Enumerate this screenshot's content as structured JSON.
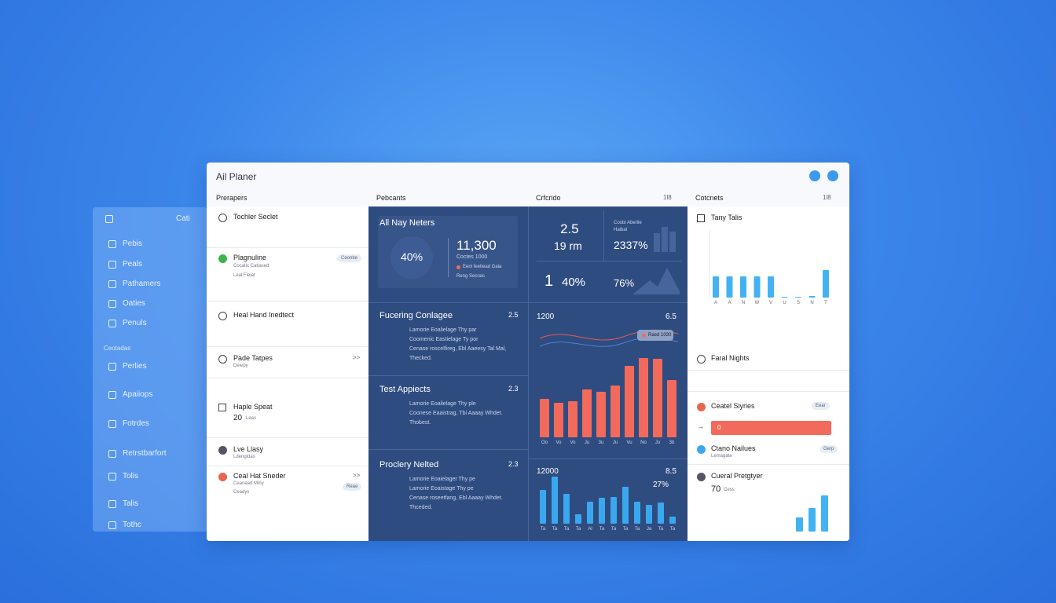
{
  "window": {
    "title": "Ail Planer"
  },
  "sidebar": {
    "header": "Cati",
    "items": [
      "Pebis",
      "Peals",
      "Pathamers",
      "Oaties",
      "Penuls"
    ],
    "section": "Ceotadas",
    "section_items": [
      "Perlies",
      "Apaiiops",
      "Fotrdes",
      "Retrstbarfort",
      "Tolis",
      "Talis",
      "Tothc"
    ]
  },
  "columns": [
    {
      "header": "Prerapers"
    },
    {
      "header": "Pebcants"
    },
    {
      "header": "Crfcrido",
      "count": "1l8"
    },
    {
      "header": "Cotcnets",
      "count": "1l8"
    }
  ],
  "list": [
    {
      "title": "Tochler Seclet"
    },
    {
      "title": "Plagnuline",
      "lines": [
        "Cocatic Catiased",
        "Leal Fleiat"
      ],
      "badge": "Ceonbe"
    },
    {
      "title": "Heal Hand Inedtect"
    },
    {
      "title": "Pade Tatpes",
      "lines": [
        "Deiepy"
      ],
      "more": ">>"
    },
    {
      "title": "Haple Speat",
      "value": "20",
      "unit": "Leas"
    },
    {
      "title": "Lve Llasy",
      "lines": [
        "Ldengidas"
      ]
    },
    {
      "title": "Ceal Hat Sneder",
      "lines": [
        "Ceanead Miny",
        "Ceadys"
      ],
      "badge": "Reae",
      "more": ">>"
    }
  ],
  "summary": {
    "title": "All Nay Neters",
    "ring": "40%",
    "total": "11,300",
    "sub": "Coctes 1000",
    "legend": "Eenl feetlead Gaia",
    "note": "Reng Secrais"
  },
  "cards": [
    {
      "title": "Fucering Conlagee",
      "score": "2.5",
      "lines": [
        "Lamorie Eoalielage Thy par",
        "Coomenic Eastielage Ty por",
        "Cenase roscelfireg, Ebl Aaeesy Tal Mal,",
        "Thecked."
      ]
    },
    {
      "title": "Test Appiects",
      "score": "2.3",
      "lines": [
        "Lamorie Eoalielage Thy ple",
        "Coonese Eaaistrag, Tbi Aaaay Whdet.",
        "Thobest."
      ]
    },
    {
      "title": "Proclery Nelted",
      "score": "2.3",
      "lines": [
        "Lamorie Eoaielager Thy pe",
        "Lamorie Eoaistage Thy pe",
        "Cenase roseetfang, Ebl Aaaay Whdet.",
        "Thceded."
      ]
    }
  ],
  "stats": {
    "a": "2.5",
    "a_unit": "19 rm",
    "b_label": "Coobi Aberiie",
    "b_sub": "Haibal",
    "b": "2337%",
    "c": "1",
    "d": "40%",
    "e": "76%"
  },
  "red_chart": {
    "title": "1200",
    "score": "6.5",
    "legend": "Raed 1030",
    "color": "#f26a5b",
    "values": [
      49,
      44,
      46,
      61,
      58,
      66,
      91,
      101,
      100,
      73
    ],
    "labels": [
      "Oo",
      "Vo",
      "Vo",
      "Ju",
      "3u",
      "Ju",
      "Vu",
      "No",
      "Ju",
      "3b"
    ]
  },
  "blue_chart": {
    "title": "12000",
    "score": "8.5",
    "pct": "27%",
    "color": "#3aa8ee",
    "values": [
      43,
      60,
      38,
      12,
      28,
      33,
      34,
      47,
      28,
      24,
      27,
      9
    ],
    "labels": [
      "Ta",
      "Ta",
      "Ta",
      "Ta",
      "Al",
      "Ta",
      "Ta",
      "Ta",
      "Ta",
      "Ja",
      "Ta",
      "Ta"
    ]
  },
  "right": {
    "chart_title": "Tany Talis",
    "chart_color": "#43b2f2",
    "chart_values": [
      27,
      27,
      27,
      27,
      27,
      1,
      1,
      2,
      35
    ],
    "chart_labels": [
      "A",
      "A",
      "N",
      "W",
      "V",
      "U",
      "S",
      "N",
      "T"
    ],
    "item1": "Faral Nights",
    "item2": "Ceatel Siyries",
    "item2_badge": "Eear",
    "progress": "0",
    "item3": "Ctano Nailues",
    "item3_sub": "Lemagate",
    "item3_badge": "Gerp",
    "item4": "Cueral Pretgtyer",
    "item4_value": "70",
    "item4_unit": "Cess",
    "mini_values": [
      18,
      30,
      46
    ]
  }
}
